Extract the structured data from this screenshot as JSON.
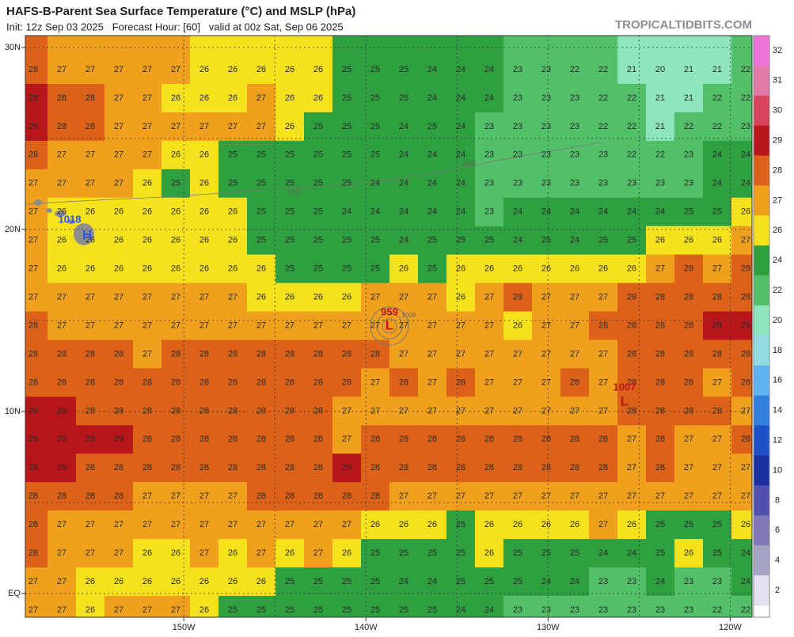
{
  "header": {
    "title": "HAFS-B-Parent Sea Surface Temperature (°C) and MSLP (hPa)",
    "subtitle": "Init: 12z Sep 03 2025   Forecast Hour: [60]   valid at 00z Sat, Sep 06 2025",
    "source": "TROPICALTIDBITS.COM"
  },
  "map": {
    "lon_range": [
      -158.7,
      -118.8
    ],
    "lat_range": [
      -1.3,
      30.65
    ],
    "lon_ticks": [
      {
        "value": -150,
        "label": "150W"
      },
      {
        "value": -140,
        "label": "140W"
      },
      {
        "value": -130,
        "label": "130W"
      },
      {
        "value": -120,
        "label": "120W"
      }
    ],
    "lat_ticks": [
      {
        "value": 30,
        "label": "30N"
      },
      {
        "value": 20,
        "label": "20N"
      },
      {
        "value": 10,
        "label": "10N"
      },
      {
        "value": 0,
        "label": "EQ"
      }
    ],
    "sst_grid": [
      [
        28,
        27,
        27,
        27,
        27,
        27,
        26,
        26,
        26,
        26,
        26,
        25,
        25,
        25,
        24,
        24,
        24,
        23,
        23,
        22,
        22,
        21,
        20,
        21,
        21,
        22
      ],
      [
        29,
        28,
        28,
        27,
        27,
        26,
        26,
        26,
        27,
        26,
        26,
        25,
        25,
        25,
        24,
        24,
        24,
        23,
        23,
        23,
        22,
        22,
        21,
        21,
        22,
        22
      ],
      [
        29,
        28,
        28,
        27,
        27,
        27,
        27,
        27,
        27,
        26,
        25,
        25,
        25,
        24,
        25,
        24,
        23,
        23,
        23,
        23,
        22,
        22,
        21,
        22,
        22,
        23
      ],
      [
        28,
        27,
        27,
        27,
        27,
        26,
        26,
        25,
        25,
        25,
        25,
        25,
        25,
        24,
        24,
        24,
        23,
        23,
        23,
        23,
        23,
        22,
        22,
        23,
        24,
        24
      ],
      [
        27,
        27,
        27,
        27,
        26,
        25,
        26,
        25,
        25,
        25,
        25,
        25,
        24,
        24,
        24,
        24,
        23,
        23,
        23,
        23,
        23,
        23,
        23,
        23,
        24,
        24
      ],
      [
        27,
        26,
        26,
        26,
        26,
        26,
        26,
        26,
        25,
        25,
        25,
        24,
        24,
        24,
        24,
        24,
        23,
        24,
        24,
        24,
        24,
        24,
        24,
        25,
        25,
        26
      ],
      [
        27,
        26,
        26,
        26,
        26,
        26,
        26,
        26,
        25,
        25,
        25,
        25,
        25,
        24,
        25,
        25,
        25,
        24,
        25,
        24,
        25,
        25,
        26,
        26,
        26,
        27
      ],
      [
        27,
        26,
        26,
        26,
        26,
        26,
        26,
        26,
        26,
        25,
        25,
        25,
        25,
        26,
        25,
        26,
        26,
        26,
        26,
        26,
        26,
        26,
        27,
        28,
        27,
        28
      ],
      [
        27,
        27,
        27,
        27,
        27,
        27,
        27,
        27,
        26,
        26,
        26,
        26,
        27,
        27,
        27,
        26,
        27,
        28,
        27,
        27,
        27,
        28,
        28,
        28,
        28,
        28
      ],
      [
        28,
        27,
        27,
        27,
        27,
        27,
        27,
        27,
        27,
        27,
        27,
        27,
        27,
        27,
        27,
        27,
        27,
        26,
        27,
        27,
        28,
        28,
        28,
        28,
        29,
        29
      ],
      [
        28,
        28,
        28,
        28,
        27,
        28,
        28,
        28,
        28,
        28,
        28,
        28,
        28,
        27,
        27,
        27,
        27,
        27,
        27,
        27,
        27,
        28,
        28,
        28,
        28,
        28
      ],
      [
        28,
        28,
        28,
        28,
        28,
        28,
        28,
        28,
        28,
        28,
        28,
        28,
        27,
        28,
        27,
        28,
        27,
        27,
        27,
        28,
        27,
        28,
        28,
        28,
        27,
        28
      ],
      [
        29,
        29,
        28,
        28,
        28,
        28,
        28,
        28,
        28,
        28,
        28,
        27,
        27,
        27,
        27,
        27,
        27,
        27,
        27,
        27,
        27,
        28,
        28,
        28,
        28,
        27
      ],
      [
        29,
        29,
        29,
        29,
        28,
        28,
        28,
        28,
        28,
        28,
        28,
        27,
        28,
        28,
        28,
        28,
        28,
        28,
        28,
        28,
        28,
        27,
        28,
        27,
        27,
        28
      ],
      [
        29,
        29,
        28,
        28,
        28,
        28,
        28,
        28,
        28,
        28,
        28,
        29,
        28,
        28,
        28,
        28,
        28,
        28,
        28,
        28,
        28,
        27,
        28,
        27,
        27,
        27
      ],
      [
        28,
        28,
        28,
        28,
        27,
        27,
        27,
        27,
        28,
        28,
        28,
        28,
        28,
        27,
        27,
        27,
        27,
        27,
        27,
        27,
        27,
        27,
        27,
        27,
        27,
        27
      ],
      [
        28,
        27,
        27,
        27,
        27,
        27,
        27,
        27,
        27,
        27,
        27,
        27,
        26,
        26,
        26,
        25,
        26,
        26,
        26,
        26,
        27,
        26,
        25,
        25,
        25,
        26
      ],
      [
        28,
        27,
        27,
        27,
        26,
        26,
        27,
        26,
        27,
        26,
        27,
        26,
        25,
        25,
        25,
        25,
        26,
        25,
        25,
        25,
        24,
        24,
        25,
        26,
        25,
        24
      ],
      [
        27,
        27,
        26,
        26,
        26,
        26,
        26,
        26,
        26,
        25,
        25,
        25,
        25,
        24,
        24,
        25,
        25,
        25,
        24,
        24,
        23,
        23,
        24,
        23,
        23,
        24
      ],
      [
        27,
        27,
        26,
        27,
        27,
        27,
        26,
        25,
        25,
        25,
        25,
        25,
        25,
        25,
        25,
        24,
        24,
        23,
        23,
        23,
        23,
        23,
        23,
        23,
        22,
        22
      ]
    ],
    "pressure_labels": [
      {
        "text": "1018",
        "symbol": "H",
        "color": "#2f55e0"
      },
      {
        "text": "959",
        "symbol": "L",
        "color": "#c0141c"
      },
      {
        "text": "1007",
        "symbol": "L",
        "color": "#c0141c"
      }
    ],
    "isobar_labels": [
      "1016",
      "1016",
      "1008"
    ]
  },
  "colorbar": [
    {
      "value": 32,
      "color": "#ee74dc"
    },
    {
      "value": 31,
      "color": "#e07aa8"
    },
    {
      "value": 30,
      "color": "#d8445c"
    },
    {
      "value": 29,
      "color": "#b8161a"
    },
    {
      "value": 28,
      "color": "#dc621a"
    },
    {
      "value": 27,
      "color": "#f0a01c"
    },
    {
      "value": 26,
      "color": "#f6e21c"
    },
    {
      "value": 24,
      "color": "#2ea040"
    },
    {
      "value": 22,
      "color": "#52c068"
    },
    {
      "value": 20,
      "color": "#8ee6bc"
    },
    {
      "value": 18,
      "color": "#90dce0"
    },
    {
      "value": 16,
      "color": "#5eb4ee"
    },
    {
      "value": 14,
      "color": "#3080e0"
    },
    {
      "value": 12,
      "color": "#2050c8"
    },
    {
      "value": 10,
      "color": "#1a30a0"
    },
    {
      "value": 8,
      "color": "#5050b0"
    },
    {
      "value": 6,
      "color": "#8078b8"
    },
    {
      "value": 4,
      "color": "#a4a4c4"
    },
    {
      "value": 2,
      "color": "#e2e2f0"
    }
  ]
}
